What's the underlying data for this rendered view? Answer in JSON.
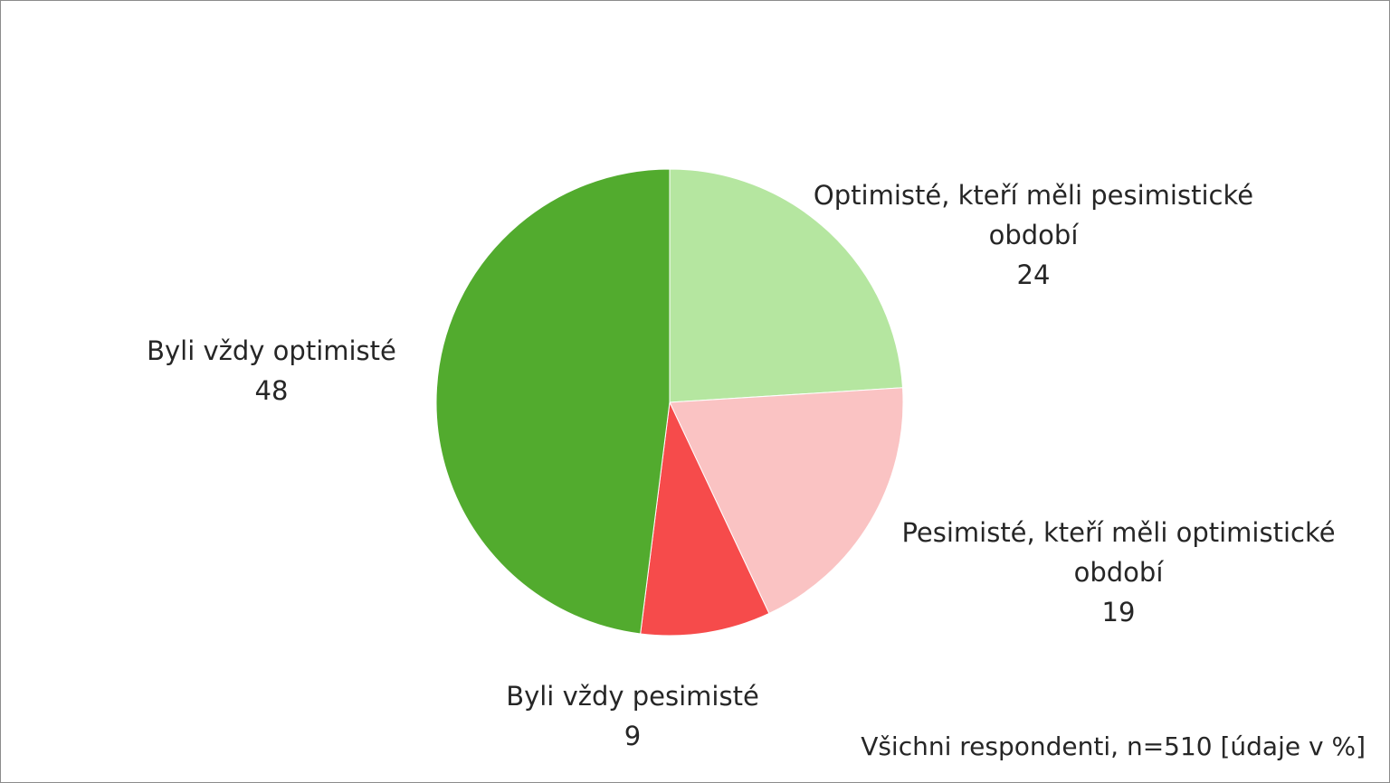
{
  "chart_data": {
    "type": "pie",
    "start_angle_deg": 0,
    "direction": "clockwise",
    "slices": [
      {
        "label": "Optimisté, kteří měli pesimistické období",
        "label_lines": [
          "Optimisté, kteří měli pesimistické",
          "období"
        ],
        "value": 24,
        "value_label": "24",
        "color": "#b5e6a0"
      },
      {
        "label": "Pesimisté, kteří měli optimistické období",
        "label_lines": [
          "Pesimisté, kteří měli optimistické",
          "období"
        ],
        "value": 19,
        "value_label": "19",
        "color": "#fac3c3"
      },
      {
        "label": "Byli vždy pesimisté",
        "label_lines": [
          "Byli vždy pesimisté"
        ],
        "value": 9,
        "value_label": "9",
        "color": "#f64b4b"
      },
      {
        "label": "Byli vždy optimisté",
        "label_lines": [
          "Byli vždy optimisté"
        ],
        "value": 48,
        "value_label": "48",
        "color": "#52ab2e"
      }
    ],
    "legend": "none",
    "note": "Všichni respondenti, n=510 [údaje v %]"
  }
}
